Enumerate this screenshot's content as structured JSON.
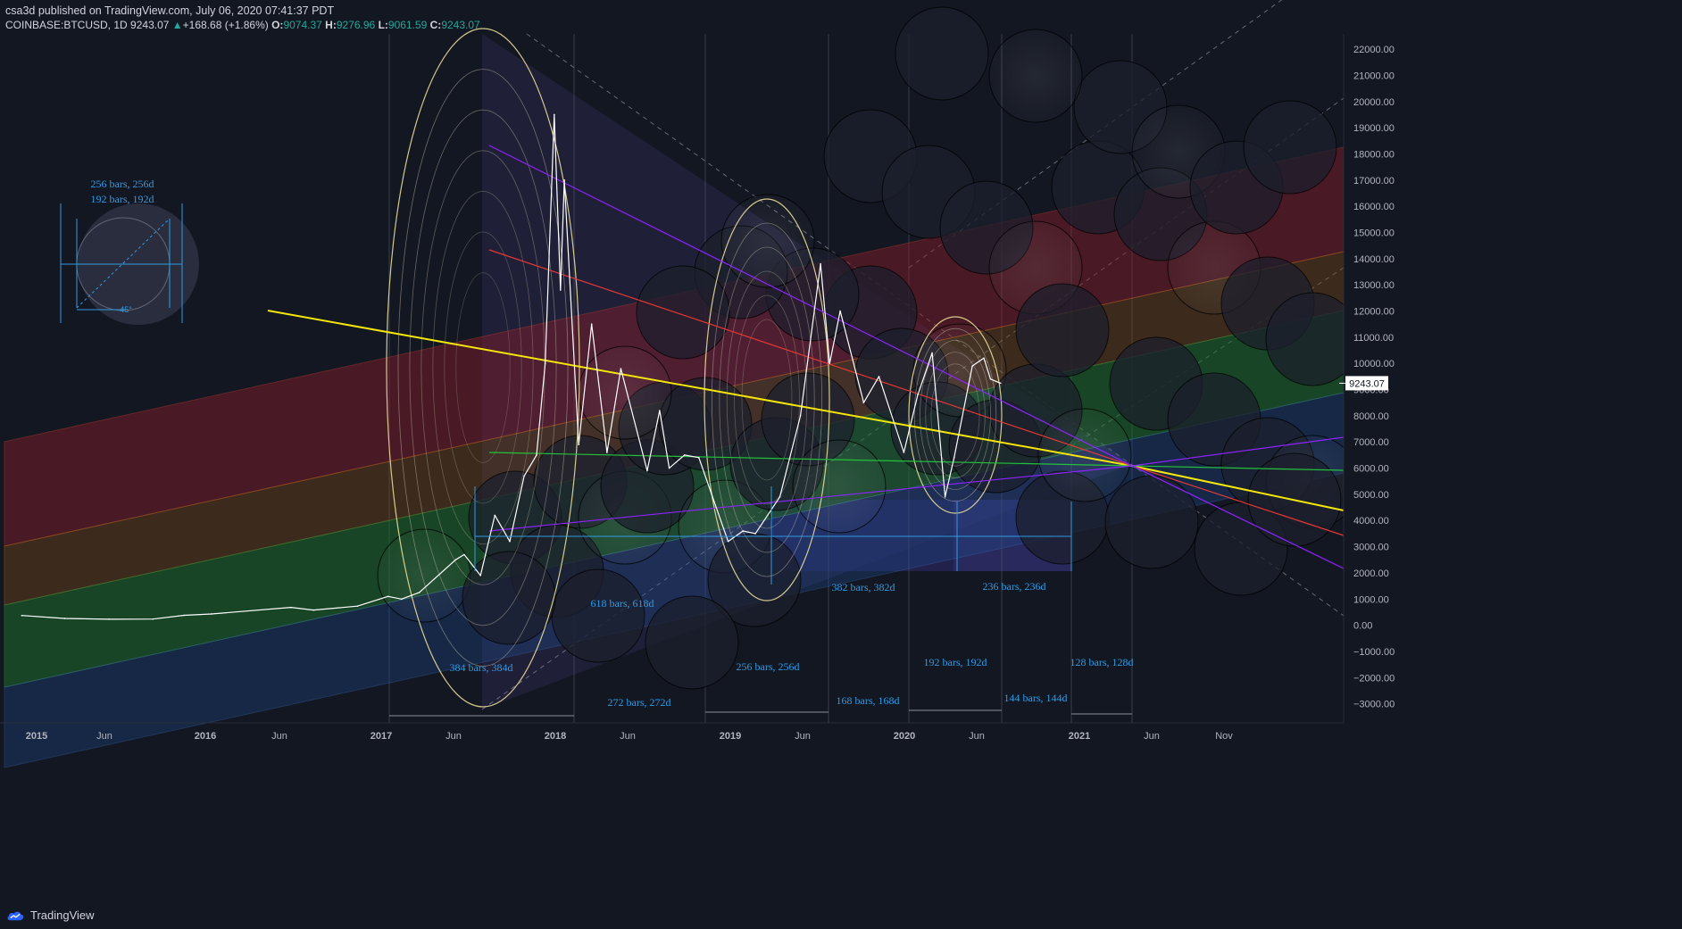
{
  "header": {
    "author": "csa3d",
    "published": "published on TradingView.com, July 06, 2020 07:41:37 PDT",
    "symbol": "COINBASE:BTCUSD, 1D",
    "last": "9243.07",
    "change": "+168.68 (+1.86%)",
    "o_label": "O:",
    "o_value": "9074.37",
    "h_label": "H:",
    "h_value": "9276.96",
    "l_label": "L:",
    "l_value": "9061.59",
    "c_label": "C:",
    "c_value": "9243.07"
  },
  "footer": {
    "brand": "TradingView"
  },
  "colors": {
    "background": "#131722",
    "price_line": "#ffffff",
    "measure_text": "#2f9be4",
    "axis_text": "#b2b5be",
    "trend_yellow": "#f5e60c",
    "trend_red": "#e53935",
    "trend_purple": "#8e24ff",
    "trend_green": "#23c23a",
    "band_red": "#8b1e2a",
    "band_orange": "#7a4a14",
    "band_green": "#1d6b2b"
  },
  "chart_data": {
    "type": "line",
    "title": "",
    "xlabel": "",
    "ylabel": "",
    "ylim": [
      -3500,
      22500
    ],
    "x_ticks": [
      "2015",
      "Jun",
      "2016",
      "Jun",
      "2017",
      "Jun",
      "2018",
      "Jun",
      "2019",
      "Jun",
      "2020",
      "Jun",
      "2021",
      "Jun",
      "Nov"
    ],
    "y_ticks": [
      "22000.00",
      "21000.00",
      "20000.00",
      "19000.00",
      "18000.00",
      "17000.00",
      "16000.00",
      "15000.00",
      "14000.00",
      "13000.00",
      "12000.00",
      "11000.00",
      "10000.00",
      "9000.00",
      "8000.00",
      "7000.00",
      "6000.00",
      "5000.00",
      "4000.00",
      "3000.00",
      "2000.00",
      "1000.00",
      "0.00",
      "−1000.00",
      "−2000.00",
      "−3000.00"
    ],
    "last_price_label": "9243.07",
    "series": [
      {
        "values_by_date": [
          [
            "2014-12-01",
            370
          ],
          [
            "2015-03-01",
            260
          ],
          [
            "2015-06-01",
            230
          ],
          [
            "2015-09-01",
            235
          ],
          [
            "2015-11-05",
            380
          ],
          [
            "2016-01-01",
            430
          ],
          [
            "2016-06-15",
            680
          ],
          [
            "2016-08-01",
            580
          ],
          [
            "2016-11-01",
            730
          ],
          [
            "2017-01-04",
            1100
          ],
          [
            "2017-02-01",
            1000
          ],
          [
            "2017-03-10",
            1250
          ],
          [
            "2017-05-25",
            2500
          ],
          [
            "2017-06-12",
            2700
          ],
          [
            "2017-07-16",
            1900
          ],
          [
            "2017-08-15",
            4200
          ],
          [
            "2017-09-15",
            3200
          ],
          [
            "2017-10-15",
            5700
          ],
          [
            "2017-11-10",
            6500
          ],
          [
            "2017-11-28",
            10000
          ],
          [
            "2017-12-17",
            19500
          ],
          [
            "2017-12-30",
            12800
          ],
          [
            "2018-01-07",
            17000
          ],
          [
            "2018-02-06",
            6900
          ],
          [
            "2018-03-05",
            11500
          ],
          [
            "2018-04-06",
            6600
          ],
          [
            "2018-05-05",
            9800
          ],
          [
            "2018-06-29",
            5900
          ],
          [
            "2018-07-25",
            8200
          ],
          [
            "2018-08-14",
            6000
          ],
          [
            "2018-09-15",
            6500
          ],
          [
            "2018-10-15",
            6400
          ],
          [
            "2018-11-20",
            4500
          ],
          [
            "2018-12-15",
            3200
          ],
          [
            "2019-01-15",
            3600
          ],
          [
            "2019-02-10",
            3500
          ],
          [
            "2019-04-02",
            4900
          ],
          [
            "2019-05-15",
            8000
          ],
          [
            "2019-06-26",
            13800
          ],
          [
            "2019-07-15",
            10000
          ],
          [
            "2019-08-06",
            12000
          ],
          [
            "2019-09-24",
            8500
          ],
          [
            "2019-10-26",
            9500
          ],
          [
            "2019-12-17",
            6600
          ],
          [
            "2020-01-15",
            8800
          ],
          [
            "2020-02-14",
            10400
          ],
          [
            "2020-03-12",
            4900
          ],
          [
            "2020-03-31",
            6400
          ],
          [
            "2020-05-08",
            9900
          ],
          [
            "2020-06-01",
            10200
          ],
          [
            "2020-06-15",
            9400
          ],
          [
            "2020-07-06",
            9243.07
          ]
        ]
      }
    ],
    "annotations": {
      "measure_labels": [
        "256 bars, 256d",
        "192 bars, 192d",
        "618 bars, 618d",
        "382 bars, 382d",
        "236 bars, 236d",
        "384 bars, 384d",
        "256 bars, 256d",
        "192 bars, 192d",
        "128 bars, 128d",
        "272 bars, 272d",
        "168 bars, 168d",
        "144 bars, 144d"
      ],
      "angle_label": "45°"
    }
  }
}
